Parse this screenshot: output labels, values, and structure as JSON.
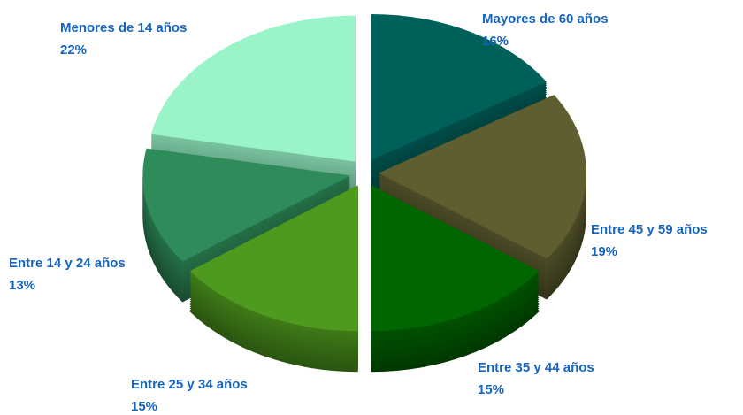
{
  "chart_data": {
    "type": "pie",
    "categories": [
      "Mayores de 60 años",
      "Entre 45 y 59 años",
      "Entre 35 y 44 años",
      "Entre 25 y 34 años",
      "Entre 14 y 24 años",
      "Menores de 14 años"
    ],
    "values": [
      16,
      19,
      15,
      15,
      13,
      22
    ],
    "value_labels": [
      "16%",
      "19%",
      "15%",
      "15%",
      "13%",
      "22%"
    ],
    "colors": [
      "#00605a",
      "#5e5e30",
      "#006600",
      "#4e9a1e",
      "#2e8b5a",
      "#99f5c8"
    ]
  }
}
